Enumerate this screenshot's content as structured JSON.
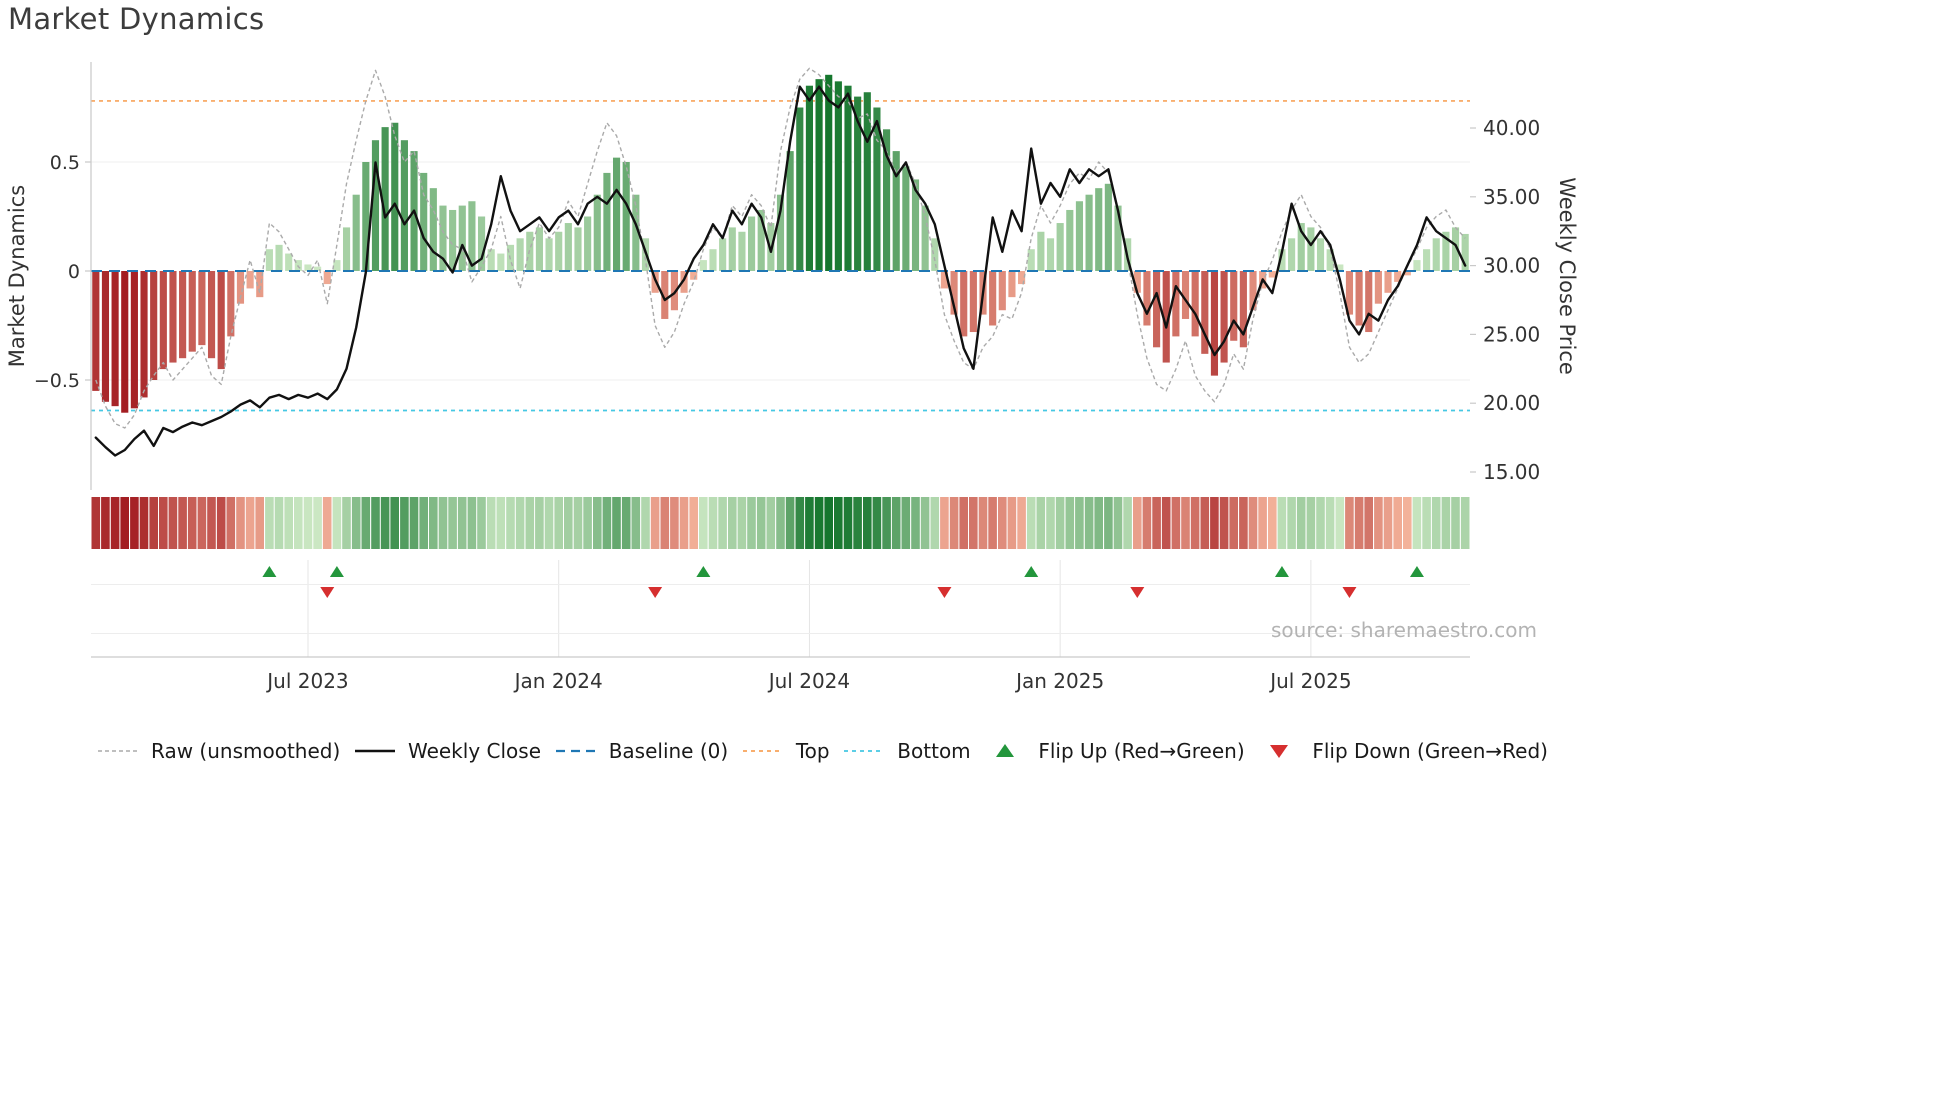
{
  "title": "Market Dynamics",
  "source": "source: sharemaestro.com",
  "colors": {
    "bar_green_dark": "#15762d",
    "bar_green_light": "#cfeac6",
    "bar_red_dark": "#a31d22",
    "bar_red_light": "#f6b79e",
    "weekly_close": "#111111",
    "raw_line": "#aaaaaa",
    "baseline": "#1f77b4",
    "top_line": "#f8a35a",
    "bottom_line": "#45c7e3",
    "flip_up": "#23963c",
    "flip_down": "#d62f2f",
    "grid": "#efefef",
    "marker_grid": "#e5e5e5",
    "spine": "#c9c9c9",
    "tick_text": "#333333",
    "source_text": "#b3b3b3"
  },
  "legend": [
    {
      "id": "raw",
      "label": "Raw (unsmoothed)",
      "swatch": "line",
      "color": "#aaaaaa",
      "dash": "4 3",
      "width": 1.5
    },
    {
      "id": "weekly-close",
      "label": "Weekly Close",
      "swatch": "line",
      "color": "#111111",
      "dash": "",
      "width": 2.4
    },
    {
      "id": "baseline",
      "label": "Baseline (0)",
      "swatch": "line",
      "color": "#1f77b4",
      "dash": "9 6",
      "width": 2.2
    },
    {
      "id": "top",
      "label": "Top",
      "swatch": "line",
      "color": "#f8a35a",
      "dash": "4 4",
      "width": 1.8
    },
    {
      "id": "bottom",
      "label": "Bottom",
      "swatch": "line",
      "color": "#45c7e3",
      "dash": "4 4",
      "width": 1.8
    },
    {
      "id": "flip-up",
      "label": "Flip Up (Red→Green)",
      "swatch": "triangle-up",
      "color": "#23963c"
    },
    {
      "id": "flip-down",
      "label": "Flip Down (Green→Red)",
      "swatch": "triangle-down",
      "color": "#d62f2f"
    }
  ],
  "chart_data": {
    "type": "bar+line",
    "title": "Market Dynamics",
    "frequency": "weekly",
    "start_date": "2023-01-30",
    "step_days": 7,
    "n_points": 143,
    "left_axis": {
      "label": "Market Dynamics",
      "range": [
        -0.95,
        0.95
      ],
      "ticks": [
        {
          "value": -0.5,
          "label": "−0.5"
        },
        {
          "value": 0,
          "label": "0"
        },
        {
          "value": 0.5,
          "label": "0.5"
        }
      ]
    },
    "right_axis": {
      "label": "Weekly Close Price",
      "range": [
        13.5,
        44.8
      ],
      "ticks": [
        {
          "value": 15,
          "label": "15.00"
        },
        {
          "value": 20,
          "label": "20.00"
        },
        {
          "value": 25,
          "label": "25.00"
        },
        {
          "value": 30,
          "label": "30.00"
        },
        {
          "value": 35,
          "label": "35.00"
        },
        {
          "value": 40,
          "label": "40.00"
        }
      ]
    },
    "x_ticks": [
      {
        "index": 22,
        "label": "Jul 2023"
      },
      {
        "index": 48,
        "label": "Jan 2024"
      },
      {
        "index": 74,
        "label": "Jul 2024"
      },
      {
        "index": 100,
        "label": "Jan 2025"
      },
      {
        "index": 126,
        "label": "Jul 2025"
      }
    ],
    "reference_lines": {
      "baseline": 0,
      "top": 0.78,
      "bottom": -0.64
    },
    "bars_smoothed": [
      -0.55,
      -0.6,
      -0.62,
      -0.65,
      -0.63,
      -0.58,
      -0.5,
      -0.45,
      -0.42,
      -0.4,
      -0.37,
      -0.34,
      -0.4,
      -0.45,
      -0.3,
      -0.15,
      -0.08,
      -0.12,
      0.1,
      0.12,
      0.08,
      0.05,
      0.03,
      0.02,
      -0.06,
      0.05,
      0.2,
      0.35,
      0.5,
      0.6,
      0.66,
      0.68,
      0.6,
      0.55,
      0.45,
      0.38,
      0.3,
      0.28,
      0.3,
      0.32,
      0.25,
      0.1,
      0.08,
      0.12,
      0.15,
      0.18,
      0.2,
      0.15,
      0.18,
      0.22,
      0.2,
      0.25,
      0.35,
      0.45,
      0.52,
      0.5,
      0.35,
      0.15,
      -0.1,
      -0.22,
      -0.18,
      -0.1,
      -0.04,
      0.05,
      0.1,
      0.15,
      0.2,
      0.18,
      0.25,
      0.28,
      0.22,
      0.35,
      0.55,
      0.75,
      0.85,
      0.88,
      0.9,
      0.87,
      0.85,
      0.8,
      0.82,
      0.75,
      0.65,
      0.55,
      0.48,
      0.42,
      0.3,
      0.15,
      -0.08,
      -0.2,
      -0.3,
      -0.28,
      -0.2,
      -0.25,
      -0.18,
      -0.12,
      -0.06,
      0.1,
      0.18,
      0.15,
      0.22,
      0.28,
      0.32,
      0.35,
      0.38,
      0.4,
      0.3,
      0.15,
      -0.1,
      -0.25,
      -0.35,
      -0.42,
      -0.3,
      -0.22,
      -0.3,
      -0.38,
      -0.48,
      -0.42,
      -0.32,
      -0.35,
      -0.18,
      -0.08,
      -0.03,
      0.1,
      0.15,
      0.22,
      0.2,
      0.15,
      0.1,
      0.03,
      -0.2,
      -0.25,
      -0.28,
      -0.15,
      -0.1,
      -0.05,
      -0.02,
      0.05,
      0.1,
      0.15,
      0.18,
      0.2,
      0.17
    ],
    "raw_unsmoothed": [
      -0.5,
      -0.62,
      -0.7,
      -0.72,
      -0.66,
      -0.55,
      -0.48,
      -0.42,
      -0.5,
      -0.45,
      -0.4,
      -0.35,
      -0.48,
      -0.52,
      -0.3,
      -0.12,
      0.05,
      -0.1,
      0.22,
      0.18,
      0.1,
      0.02,
      -0.02,
      0.05,
      -0.15,
      0.12,
      0.4,
      0.6,
      0.78,
      0.92,
      0.8,
      0.62,
      0.5,
      0.55,
      0.35,
      0.28,
      0.18,
      0.12,
      0.1,
      -0.05,
      0.02,
      0.1,
      0.25,
      0.05,
      -0.08,
      0.1,
      0.22,
      0.15,
      0.2,
      0.32,
      0.25,
      0.4,
      0.55,
      0.68,
      0.62,
      0.48,
      0.3,
      0.05,
      -0.25,
      -0.35,
      -0.28,
      -0.15,
      -0.05,
      0.1,
      0.2,
      0.15,
      0.3,
      0.25,
      0.35,
      0.3,
      0.2,
      0.55,
      0.75,
      0.88,
      0.93,
      0.9,
      0.85,
      0.8,
      0.78,
      0.7,
      0.72,
      0.6,
      0.55,
      0.45,
      0.5,
      0.4,
      0.25,
      0.05,
      -0.2,
      -0.32,
      -0.42,
      -0.45,
      -0.35,
      -0.3,
      -0.2,
      -0.22,
      -0.1,
      0.15,
      0.3,
      0.22,
      0.3,
      0.4,
      0.45,
      0.42,
      0.5,
      0.45,
      0.28,
      0.05,
      -0.2,
      -0.4,
      -0.52,
      -0.55,
      -0.45,
      -0.32,
      -0.48,
      -0.55,
      -0.6,
      -0.52,
      -0.38,
      -0.45,
      -0.22,
      -0.05,
      0.05,
      0.18,
      0.28,
      0.35,
      0.25,
      0.2,
      0.1,
      -0.1,
      -0.35,
      -0.42,
      -0.38,
      -0.28,
      -0.18,
      -0.08,
      0.02,
      0.1,
      0.2,
      0.25,
      0.28,
      0.2,
      0.15
    ],
    "weekly_close": [
      17.5,
      16.8,
      16.2,
      16.6,
      17.4,
      18,
      16.9,
      18.2,
      17.9,
      18.3,
      18.6,
      18.4,
      18.7,
      19,
      19.4,
      19.9,
      20.2,
      19.7,
      20.4,
      20.6,
      20.3,
      20.6,
      20.4,
      20.7,
      20.3,
      21,
      22.5,
      25.5,
      29.5,
      37.5,
      33.5,
      34.5,
      33,
      34,
      32,
      31,
      30.5,
      29.5,
      31.5,
      30,
      30.5,
      33,
      36.5,
      34,
      32.5,
      33,
      33.5,
      32.5,
      33.5,
      34,
      33,
      34.5,
      35,
      34.5,
      35.5,
      34.5,
      33,
      31,
      29,
      27.5,
      28,
      29,
      30.5,
      31.5,
      33,
      32,
      34,
      33,
      34.5,
      33.5,
      31,
      34,
      39,
      43,
      42,
      43,
      42,
      41.5,
      42.5,
      40.5,
      39,
      40.5,
      38,
      36.5,
      37.5,
      35.5,
      34.5,
      33,
      30,
      27,
      24,
      22.5,
      28,
      33.5,
      31,
      34,
      32.5,
      38.5,
      34.5,
      36,
      35,
      37,
      36,
      37,
      36.5,
      37,
      34,
      30.5,
      28,
      26.5,
      28,
      25.5,
      28.5,
      27.5,
      26.5,
      25,
      23.5,
      24.5,
      26,
      25,
      27,
      29,
      28,
      31,
      34.5,
      32.5,
      31.5,
      32.5,
      31.5,
      29,
      26,
      25,
      26.5,
      26,
      27.5,
      28.5,
      30,
      31.5,
      33.5,
      32.5,
      32,
      31.5,
      30
    ],
    "flip_up_indices": [
      18,
      25,
      63,
      97,
      123,
      137
    ],
    "flip_down_indices": [
      24,
      58,
      88,
      108,
      130
    ]
  }
}
